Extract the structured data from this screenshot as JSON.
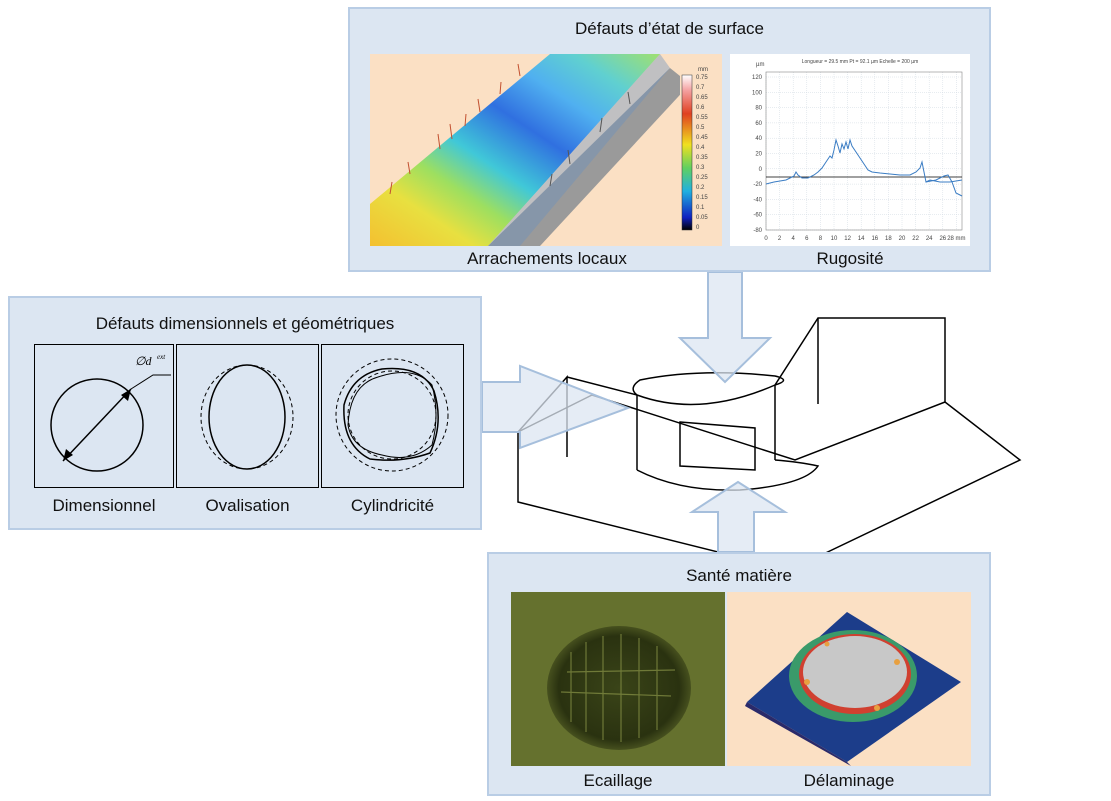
{
  "surface": {
    "title": "Défauts d’état de surface",
    "left_caption": "Arrachements locaux",
    "right_caption": "Rugosité",
    "colorbar": {
      "unit": "mm",
      "ticks": [
        "0.75",
        "0.7",
        "0.65",
        "0.6",
        "0.55",
        "0.5",
        "0.45",
        "0.4",
        "0.35",
        "0.3",
        "0.25",
        "0.2",
        "0.15",
        "0.1",
        "0.05",
        "0"
      ]
    },
    "profile": {
      "header": "Longueur = 29.5 mm  Pt = 92.1 µm  Echelle = 200 µm",
      "unit_y": "µm",
      "unit_x": "mm",
      "y_ticks": [
        "120",
        "100",
        "80",
        "60",
        "40",
        "20",
        "0",
        "-20",
        "-40",
        "-60",
        "-80"
      ],
      "x_ticks": [
        "0",
        "2",
        "4",
        "6",
        "8",
        "10",
        "12",
        "14",
        "16",
        "18",
        "20",
        "22",
        "24",
        "26",
        "28 mm"
      ]
    }
  },
  "dimensional": {
    "title": "Défauts dimensionnels et géométriques",
    "diameter_label": "∅d",
    "diameter_sup": "ext",
    "captions": [
      "Dimensionnel",
      "Ovalisation",
      "Cylindricité"
    ]
  },
  "material": {
    "title": "Santé matière",
    "captions": [
      "Ecaillage",
      "Délaminage"
    ]
  },
  "colors": {
    "panel_fill": "#dce6f2",
    "panel_border": "#b9cde5",
    "arrow_fill": "#dce6f2",
    "arrow_stroke": "#a6bfdc"
  }
}
